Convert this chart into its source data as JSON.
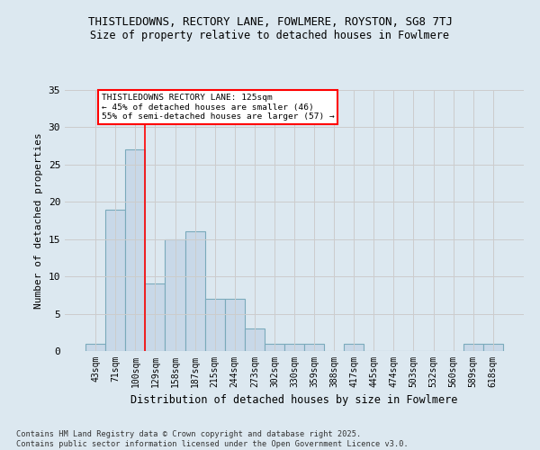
{
  "title_line1": "THISTLEDOWNS, RECTORY LANE, FOWLMERE, ROYSTON, SG8 7TJ",
  "title_line2": "Size of property relative to detached houses in Fowlmere",
  "xlabel": "Distribution of detached houses by size in Fowlmere",
  "ylabel": "Number of detached properties",
  "bar_values": [
    1,
    19,
    27,
    9,
    15,
    16,
    7,
    7,
    3,
    1,
    1,
    1,
    0,
    1,
    0,
    0,
    0,
    0,
    0,
    1,
    1
  ],
  "bin_labels": [
    "43sqm",
    "71sqm",
    "100sqm",
    "129sqm",
    "158sqm",
    "187sqm",
    "215sqm",
    "244sqm",
    "273sqm",
    "302sqm",
    "330sqm",
    "359sqm",
    "388sqm",
    "417sqm",
    "445sqm",
    "474sqm",
    "503sqm",
    "532sqm",
    "560sqm",
    "589sqm",
    "618sqm"
  ],
  "bar_color": "#c8d8e8",
  "bar_edge_color": "#7aaabb",
  "vline_x": 2.5,
  "vline_color": "red",
  "annotation_text": "THISTLEDOWNS RECTORY LANE: 125sqm\n← 45% of detached houses are smaller (46)\n55% of semi-detached houses are larger (57) →",
  "annotation_box_color": "white",
  "annotation_box_edge_color": "red",
  "ylim": [
    0,
    35
  ],
  "yticks": [
    0,
    5,
    10,
    15,
    20,
    25,
    30,
    35
  ],
  "grid_color": "#cccccc",
  "background_color": "#dce8f0",
  "plot_bg_color": "#dce8f0",
  "footer_line1": "Contains HM Land Registry data © Crown copyright and database right 2025.",
  "footer_line2": "Contains public sector information licensed under the Open Government Licence v3.0."
}
